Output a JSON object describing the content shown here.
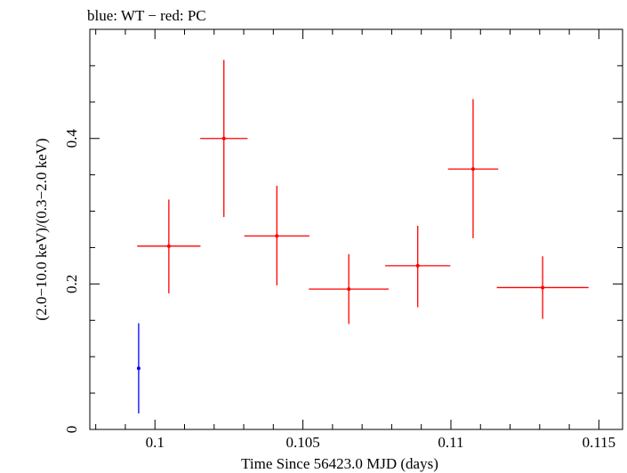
{
  "chart_data": {
    "type": "scatter",
    "title": "blue: WT − red: PC",
    "xlabel": "Time Since 56423.0 MJD (days)",
    "ylabel": "(2.0−10.0 keV)/(0.3−2.0 keV)",
    "xlim": [
      0.0978,
      0.1158
    ],
    "ylim": [
      0,
      0.55
    ],
    "xticks": [
      {
        "value": 0.1,
        "label": "0.1"
      },
      {
        "value": 0.105,
        "label": "0.105"
      },
      {
        "value": 0.11,
        "label": "0.11"
      },
      {
        "value": 0.115,
        "label": "0.115"
      }
    ],
    "yticks": [
      {
        "value": 0,
        "label": "0"
      },
      {
        "value": 0.2,
        "label": "0.2"
      },
      {
        "value": 0.4,
        "label": "0.4"
      }
    ],
    "grid": false,
    "series": [
      {
        "name": "WT",
        "color": "#0000ff",
        "points": [
          {
            "x": 0.09945,
            "xerr": 0.0,
            "y": 0.084,
            "ylow": 0.022,
            "yhigh": 0.146
          }
        ]
      },
      {
        "name": "PC",
        "color": "#ff0000",
        "points": [
          {
            "x": 0.10047,
            "xerr": 0.00107,
            "y": 0.252,
            "ylow": 0.187,
            "yhigh": 0.316
          },
          {
            "x": 0.10233,
            "xerr": 0.0008,
            "y": 0.4,
            "ylow": 0.292,
            "yhigh": 0.508
          },
          {
            "x": 0.10412,
            "xerr": 0.0011,
            "y": 0.266,
            "ylow": 0.198,
            "yhigh": 0.335
          },
          {
            "x": 0.10655,
            "xerr": 0.00135,
            "y": 0.193,
            "ylow": 0.145,
            "yhigh": 0.241
          },
          {
            "x": 0.10888,
            "xerr": 0.0011,
            "y": 0.225,
            "ylow": 0.168,
            "yhigh": 0.28
          },
          {
            "x": 0.11075,
            "xerr": 0.00085,
            "y": 0.358,
            "ylow": 0.263,
            "yhigh": 0.454
          },
          {
            "x": 0.1131,
            "xerr": 0.00155,
            "y": 0.195,
            "ylow": 0.152,
            "yhigh": 0.238
          }
        ]
      }
    ]
  }
}
